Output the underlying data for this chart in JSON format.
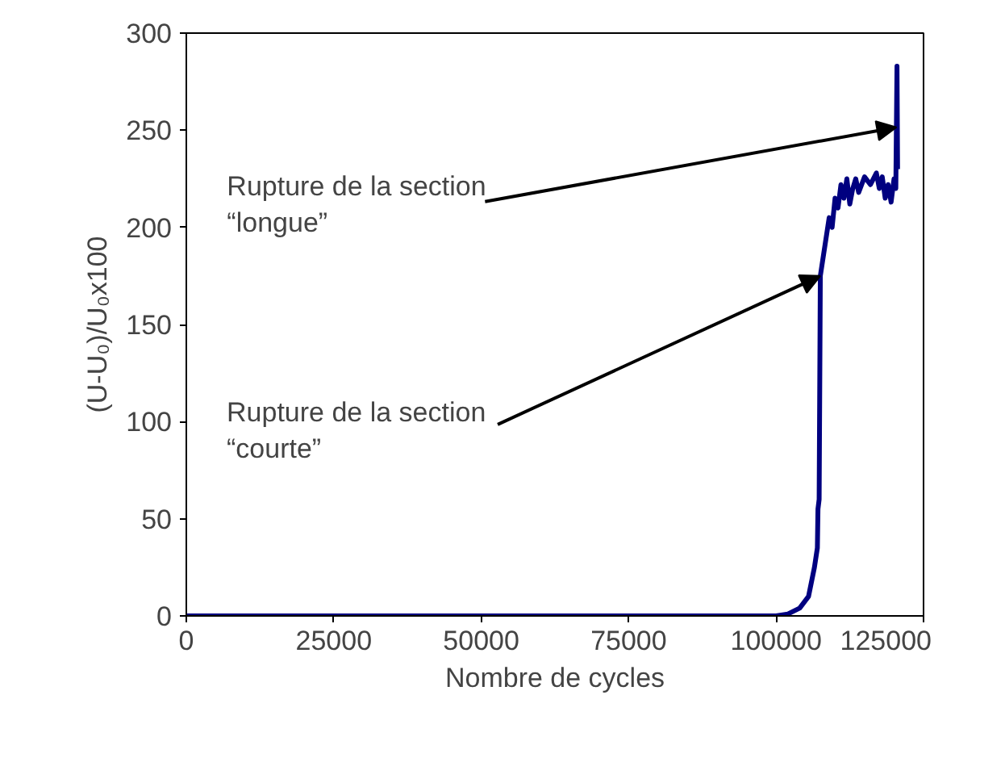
{
  "chart_data": {
    "type": "line",
    "xlabel": "Nombre de cycles",
    "ylabel": "(U-U₀)/U₀x100",
    "xlim": [
      0,
      125000
    ],
    "xticks": [
      0,
      25000,
      50000,
      75000,
      100000,
      125000
    ],
    "ylim": [
      0,
      300
    ],
    "yticks": [
      0,
      50,
      100,
      150,
      200,
      250,
      300
    ],
    "grid": false,
    "marker": "none",
    "line_style": "solid",
    "series": [
      {
        "color": "#000080",
        "x": [
          0,
          20000,
          50000,
          100000,
          102000,
          104000,
          105500,
          106500,
          107000,
          107100,
          107300,
          107500,
          108000,
          108500,
          109000,
          109500,
          110000,
          110500,
          111000,
          111500,
          112000,
          112500,
          113000,
          113500,
          114000,
          115000,
          116000,
          117000,
          117500,
          118000,
          118500,
          119000,
          119500,
          120000,
          120300,
          120500,
          120600
        ],
        "values": [
          0,
          0,
          0,
          0,
          1,
          4,
          10,
          25,
          35,
          55,
          60,
          175,
          185,
          195,
          205,
          200,
          215,
          210,
          222,
          215,
          225,
          212,
          220,
          225,
          218,
          226,
          222,
          228,
          220,
          226,
          215,
          222,
          213,
          225,
          220,
          283,
          230
        ]
      }
    ],
    "annotations": [
      {
        "text": "Rupture de la section\n“longue”",
        "x": 120400,
        "y": 251.5
      },
      {
        "text": "Rupture de la section\n“courte”",
        "x": 107500,
        "y": 175
      }
    ]
  }
}
